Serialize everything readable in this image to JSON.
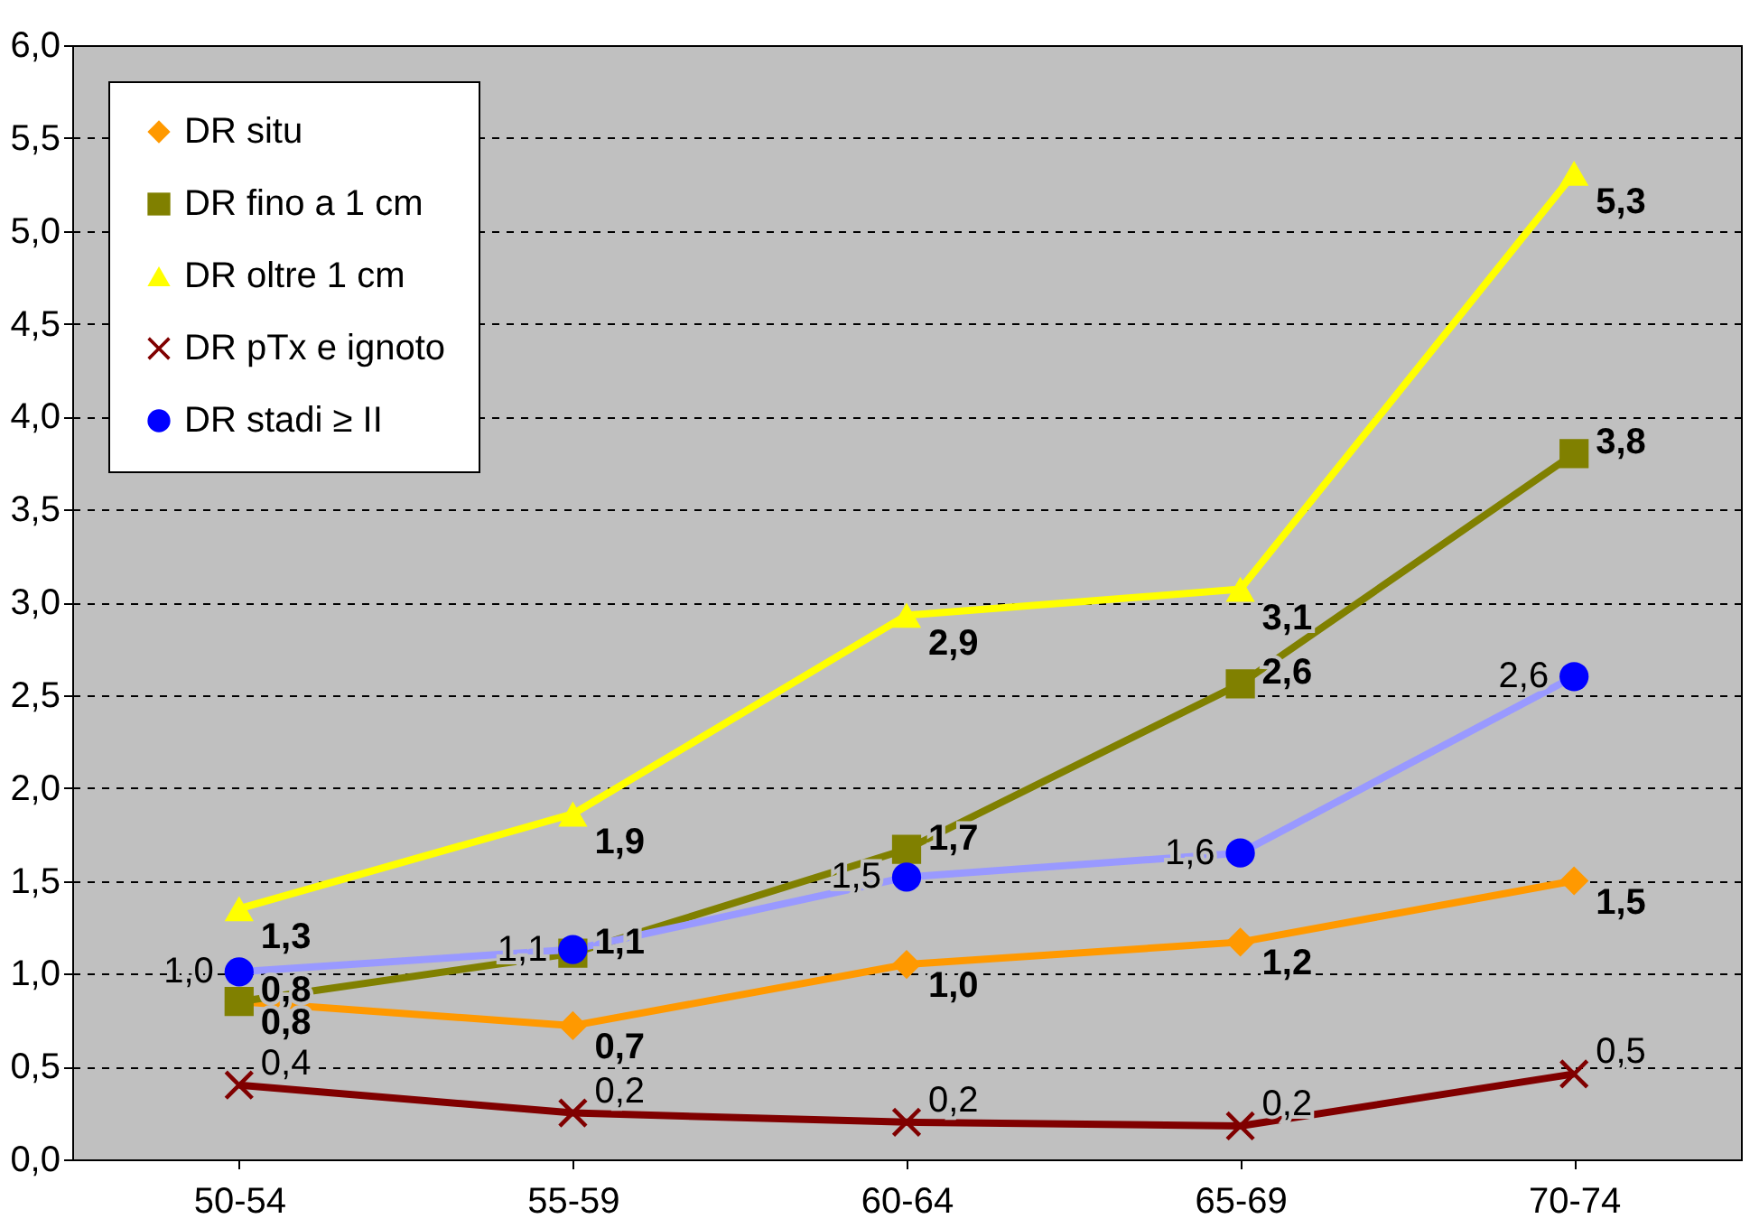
{
  "chart_data": {
    "type": "line",
    "categories": [
      "50-54",
      "55-59",
      "60-64",
      "65-69",
      "70-74"
    ],
    "ylim": [
      0,
      6
    ],
    "yticks": [
      {
        "value": 0,
        "label": "0,0"
      },
      {
        "value": 0.5,
        "label": "0,5"
      },
      {
        "value": 1,
        "label": "1,0"
      },
      {
        "value": 1.5,
        "label": "1,5"
      },
      {
        "value": 2,
        "label": "2,0"
      },
      {
        "value": 2.5,
        "label": "2,5"
      },
      {
        "value": 3,
        "label": "3,0"
      },
      {
        "value": 3.5,
        "label": "3,5"
      },
      {
        "value": 4,
        "label": "4,0"
      },
      {
        "value": 4.5,
        "label": "4,5"
      },
      {
        "value": 5,
        "label": "5,0"
      },
      {
        "value": 5.5,
        "label": "5,5"
      },
      {
        "value": 6,
        "label": "6,0"
      }
    ],
    "grid": "y",
    "legend": "top left",
    "line_style": "solid",
    "series": [
      {
        "name": "DR situ",
        "color": "#ff9900",
        "marker": "diamond",
        "values": [
          0.85,
          0.72,
          1.05,
          1.17,
          1.5
        ],
        "value_labels": [
          "0,8",
          "0,7",
          "1,0",
          "1,2",
          "1,5"
        ]
      },
      {
        "name": "DR fino a 1 cm",
        "color": "#808000",
        "marker": "square",
        "values": [
          0.85,
          1.11,
          1.67,
          2.56,
          3.8
        ],
        "value_labels": [
          "0,8",
          "1,1",
          "1,7",
          "2,6",
          "3,8"
        ]
      },
      {
        "name": "DR oltre 1 cm",
        "color": "#ffff00",
        "marker": "triangle",
        "values": [
          1.35,
          1.86,
          2.93,
          3.07,
          5.31
        ],
        "value_labels": [
          "1,3",
          "1,9",
          "2,9",
          "3,1",
          "5,3"
        ]
      },
      {
        "name": "DR pTx e ignoto",
        "color": "#800000",
        "marker": "cross",
        "values": [
          0.4,
          0.25,
          0.2,
          0.18,
          0.46
        ],
        "value_labels": [
          "0,4",
          "0,2",
          "0,2",
          "0,2",
          "0,5"
        ]
      },
      {
        "name": "DR stadi ≥ II",
        "color": "#9999ff",
        "colors": [
          "#0000ff",
          "#0000ff",
          "#0000ff",
          "#0000ff",
          "#0000ff"
        ],
        "marker": "circle",
        "values": [
          1.01,
          1.13,
          1.52,
          1.65,
          2.6
        ],
        "value_labels": [
          "1,0",
          "1,1",
          "1,5",
          "1,6",
          "2,6"
        ]
      }
    ]
  }
}
